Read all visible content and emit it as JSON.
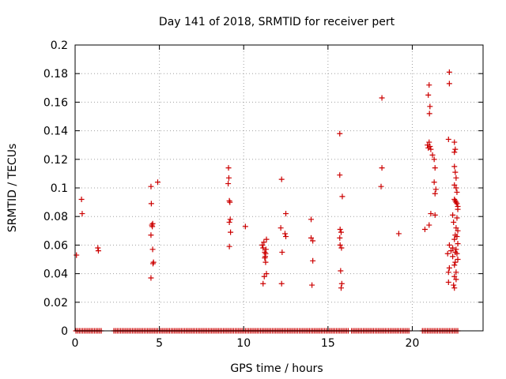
{
  "chart_data": {
    "type": "scatter",
    "title": "Day 141 of 2018, SRMTID for receiver pert",
    "xlabel": "GPS time / hours",
    "ylabel": "SRMTID / TECUs",
    "xlim": [
      0,
      24.2
    ],
    "ylim": [
      0,
      0.2
    ],
    "xticks": [
      0,
      5,
      10,
      15,
      20
    ],
    "yticks": [
      0,
      0.02,
      0.04,
      0.06,
      0.08,
      0.1,
      0.12,
      0.14,
      0.16,
      0.18,
      0.2
    ],
    "ytick_labels": [
      "0",
      "0.02",
      "0.04",
      "0.06",
      "0.08",
      "0.1",
      "0.12",
      "0.14",
      "0.16",
      "0.18",
      "0.2"
    ],
    "grid": true,
    "marker": "+",
    "color": "#cc0000",
    "zero_baseline": {
      "y": 0,
      "segments": [
        [
          0.05,
          1.6
        ],
        [
          2.3,
          16.2
        ],
        [
          16.4,
          19.8
        ],
        [
          20.6,
          22.7
        ]
      ],
      "spacing_hours": 0.1
    },
    "points": [
      [
        0.08,
        0.053
      ],
      [
        0.38,
        0.092
      ],
      [
        0.42,
        0.082
      ],
      [
        1.35,
        0.058
      ],
      [
        1.38,
        0.056
      ],
      [
        4.5,
        0.101
      ],
      [
        4.52,
        0.089
      ],
      [
        4.55,
        0.074
      ],
      [
        4.58,
        0.073
      ],
      [
        4.6,
        0.075
      ],
      [
        4.5,
        0.067
      ],
      [
        4.6,
        0.057
      ],
      [
        4.65,
        0.048
      ],
      [
        4.62,
        0.047
      ],
      [
        4.5,
        0.037
      ],
      [
        4.9,
        0.104
      ],
      [
        9.1,
        0.114
      ],
      [
        9.12,
        0.107
      ],
      [
        9.08,
        0.103
      ],
      [
        9.15,
        0.091
      ],
      [
        9.18,
        0.09
      ],
      [
        9.2,
        0.078
      ],
      [
        9.15,
        0.076
      ],
      [
        9.22,
        0.069
      ],
      [
        9.15,
        0.059
      ],
      [
        10.1,
        0.073
      ],
      [
        11.1,
        0.06
      ],
      [
        11.15,
        0.058
      ],
      [
        11.2,
        0.062
      ],
      [
        11.25,
        0.055
      ],
      [
        11.28,
        0.052
      ],
      [
        11.3,
        0.054
      ],
      [
        11.35,
        0.064
      ],
      [
        11.32,
        0.057
      ],
      [
        11.25,
        0.051
      ],
      [
        11.3,
        0.048
      ],
      [
        11.22,
        0.038
      ],
      [
        11.35,
        0.04
      ],
      [
        11.15,
        0.033
      ],
      [
        12.25,
        0.106
      ],
      [
        12.2,
        0.072
      ],
      [
        12.45,
        0.068
      ],
      [
        12.5,
        0.082
      ],
      [
        12.5,
        0.066
      ],
      [
        12.28,
        0.055
      ],
      [
        12.25,
        0.033
      ],
      [
        14.0,
        0.078
      ],
      [
        14.0,
        0.065
      ],
      [
        14.1,
        0.063
      ],
      [
        14.1,
        0.049
      ],
      [
        14.05,
        0.032
      ],
      [
        15.7,
        0.138
      ],
      [
        15.7,
        0.109
      ],
      [
        15.85,
        0.094
      ],
      [
        15.72,
        0.071
      ],
      [
        15.78,
        0.069
      ],
      [
        15.7,
        0.065
      ],
      [
        15.72,
        0.06
      ],
      [
        15.8,
        0.058
      ],
      [
        15.75,
        0.042
      ],
      [
        15.82,
        0.033
      ],
      [
        15.78,
        0.03
      ],
      [
        18.2,
        0.163
      ],
      [
        18.2,
        0.114
      ],
      [
        18.15,
        0.101
      ],
      [
        19.2,
        0.068
      ],
      [
        21.0,
        0.172
      ],
      [
        20.95,
        0.165
      ],
      [
        21.05,
        0.157
      ],
      [
        21.02,
        0.152
      ],
      [
        20.9,
        0.13
      ],
      [
        20.95,
        0.128
      ],
      [
        21.0,
        0.132
      ],
      [
        21.05,
        0.129
      ],
      [
        21.1,
        0.127
      ],
      [
        21.2,
        0.123
      ],
      [
        21.3,
        0.12
      ],
      [
        21.35,
        0.114
      ],
      [
        21.3,
        0.104
      ],
      [
        21.4,
        0.099
      ],
      [
        21.35,
        0.096
      ],
      [
        21.1,
        0.082
      ],
      [
        21.35,
        0.081
      ],
      [
        21.0,
        0.074
      ],
      [
        20.75,
        0.071
      ],
      [
        22.2,
        0.181
      ],
      [
        22.2,
        0.173
      ],
      [
        22.15,
        0.134
      ],
      [
        22.5,
        0.132
      ],
      [
        22.55,
        0.127
      ],
      [
        22.5,
        0.125
      ],
      [
        22.5,
        0.115
      ],
      [
        22.55,
        0.111
      ],
      [
        22.6,
        0.107
      ],
      [
        22.5,
        0.102
      ],
      [
        22.6,
        0.1
      ],
      [
        22.65,
        0.097
      ],
      [
        22.5,
        0.092
      ],
      [
        22.55,
        0.091
      ],
      [
        22.6,
        0.09
      ],
      [
        22.65,
        0.089
      ],
      [
        22.7,
        0.087
      ],
      [
        22.7,
        0.085
      ],
      [
        22.4,
        0.081
      ],
      [
        22.65,
        0.079
      ],
      [
        22.45,
        0.076
      ],
      [
        22.6,
        0.072
      ],
      [
        22.7,
        0.07
      ],
      [
        22.55,
        0.067
      ],
      [
        22.65,
        0.066
      ],
      [
        22.5,
        0.064
      ],
      [
        22.7,
        0.061
      ],
      [
        22.2,
        0.06
      ],
      [
        22.4,
        0.058
      ],
      [
        22.6,
        0.057
      ],
      [
        22.3,
        0.056
      ],
      [
        22.55,
        0.055
      ],
      [
        22.65,
        0.054
      ],
      [
        22.1,
        0.054
      ],
      [
        22.4,
        0.052
      ],
      [
        22.7,
        0.05
      ],
      [
        22.55,
        0.048
      ],
      [
        22.5,
        0.046
      ],
      [
        22.2,
        0.044
      ],
      [
        22.15,
        0.041
      ],
      [
        22.6,
        0.041
      ],
      [
        22.5,
        0.038
      ],
      [
        22.6,
        0.036
      ],
      [
        22.15,
        0.034
      ],
      [
        22.45,
        0.032
      ],
      [
        22.5,
        0.03
      ]
    ]
  }
}
